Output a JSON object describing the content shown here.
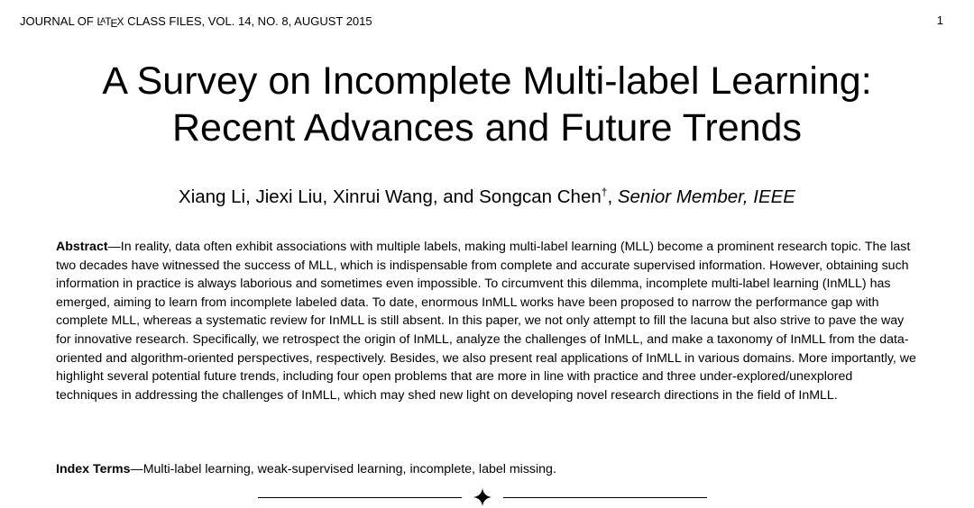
{
  "header": {
    "journal_prefix": "JOURNAL OF ",
    "latex_L": "L",
    "latex_A": "A",
    "latex_T": "T",
    "latex_E": "E",
    "latex_X": "X",
    "journal_suffix": " CLASS FILES, VOL. 14, NO. 8, AUGUST 2015",
    "page_number": "1"
  },
  "title": {
    "line1": "A Survey on Incomplete Multi-label Learning:",
    "line2": "Recent Advances and Future Trends"
  },
  "authors": {
    "names": "Xiang Li, Jiexi Liu, Xinrui Wang, and Songcan Chen",
    "dagger": "†",
    "separator": ", ",
    "membership": "Senior Member, IEEE"
  },
  "abstract": {
    "label": "Abstract",
    "dash": "—",
    "text": "In reality, data often exhibit associations with multiple labels, making multi-label learning (MLL) become a prominent research topic. The last two decades have witnessed the success of MLL, which is indispensable from complete and accurate supervised information. However, obtaining such information in practice is always laborious and sometimes even impossible. To circumvent this dilemma, incomplete multi-label learning (InMLL) has emerged, aiming to learn from incomplete labeled data. To date, enormous InMLL works have been proposed to narrow the performance gap with complete MLL, whereas a systematic review for InMLL is still absent. In this paper, we not only attempt to fill the lacuna but also strive to pave the way for innovative research. Specifically, we retrospect the origin of InMLL, analyze the challenges of InMLL, and make a taxonomy of InMLL from the data-oriented and algorithm-oriented perspectives, respectively. Besides, we also present real applications of InMLL in various domains. More importantly, we highlight several potential future trends, including four open problems that are more in line with practice and three under-explored/unexplored techniques in addressing the challenges of InMLL, which may shed new light on developing novel research directions in the field of InMLL."
  },
  "index_terms": {
    "label": "Index Terms",
    "dash": "—",
    "text": "Multi-label learning, weak-supervised learning, incomplete, label missing."
  },
  "divider": {
    "icon": "diamond-icon"
  }
}
